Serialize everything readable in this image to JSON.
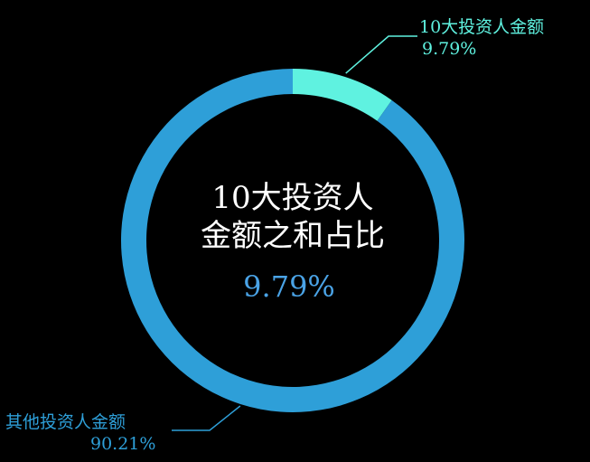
{
  "colors": {
    "background": "#000000",
    "top10_slice": "#5ff2e0",
    "others_slice": "#2e9fd8",
    "center_text": "#ffffff",
    "center_value": "#4aa3e6"
  },
  "center": {
    "line1": "10大投资人",
    "line2": "金额之和占比",
    "value": "9.79%"
  },
  "chart_data": {
    "type": "pie",
    "donut": true,
    "slices": [
      {
        "name": "10大投资人金额",
        "value": 9.79,
        "percent_label": "9.79%",
        "color": "#5ff2e0"
      },
      {
        "name": "其他投资人金额",
        "value": 90.21,
        "percent_label": "90.21%",
        "color": "#2e9fd8"
      }
    ]
  }
}
